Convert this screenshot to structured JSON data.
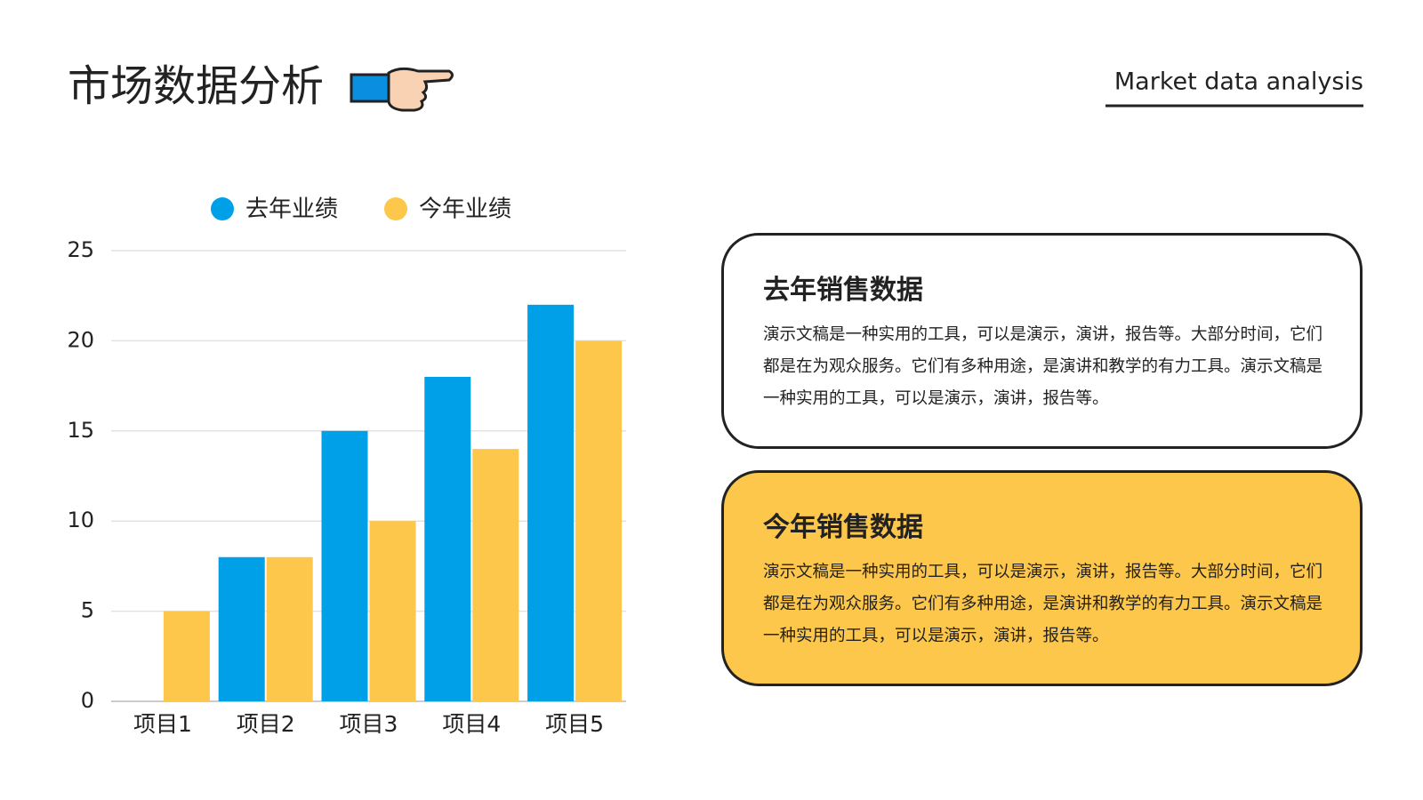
{
  "header": {
    "title": "市场数据分析",
    "subtitle": "Market data analysis"
  },
  "chart_data": {
    "type": "bar",
    "categories": [
      "项目1",
      "项目2",
      "项目3",
      "项目4",
      "项目5"
    ],
    "series": [
      {
        "name": "去年业绩",
        "color": "#00a0e9",
        "values": [
          0,
          8,
          15,
          18,
          22
        ]
      },
      {
        "name": "今年业绩",
        "color": "#fcc74b",
        "values": [
          5,
          8,
          10,
          14,
          20
        ]
      }
    ],
    "ylim": [
      0,
      25
    ],
    "yticks": [
      0,
      5,
      10,
      15,
      20,
      25
    ],
    "grid": true,
    "legend": "top"
  },
  "cards": [
    {
      "title": "去年销售数据",
      "body": "演示文稿是一种实用的工具，可以是演示，演讲，报告等。大部分时间，它们都是在为观众服务。它们有多种用途，是演讲和教学的有力工具。演示文稿是一种实用的工具，可以是演示，演讲，报告等。"
    },
    {
      "title": "今年销售数据",
      "body": "演示文稿是一种实用的工具，可以是演示，演讲，报告等。大部分时间，它们都是在为观众服务。它们有多种用途，是演讲和教学的有力工具。演示文稿是一种实用的工具，可以是演示，演讲，报告等。"
    }
  ]
}
